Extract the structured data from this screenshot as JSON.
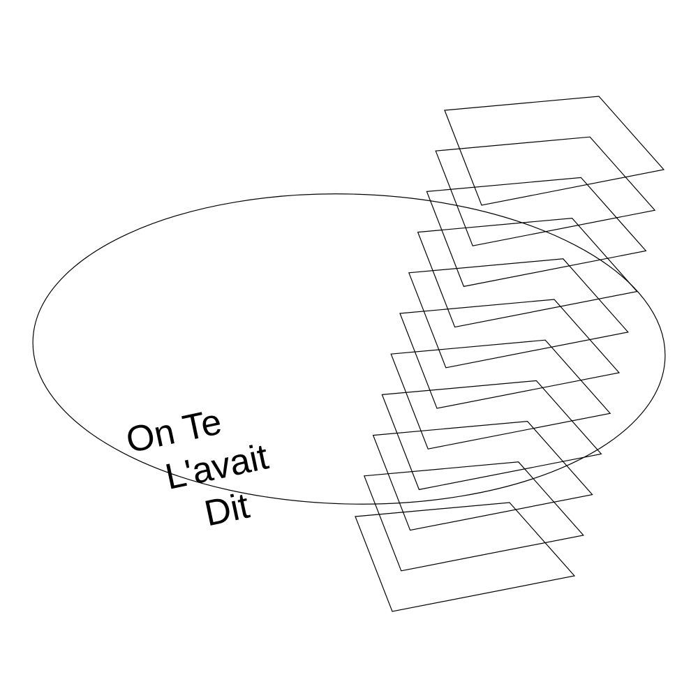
{
  "title_lines": [
    "On Te",
    "L'avait",
    "Dit"
  ],
  "colors": {
    "background": "#ffffff",
    "stroke": "#000000",
    "text": "#000000"
  },
  "shapes": {
    "ellipse": "ellipse-outline",
    "stacked_frames_count": 11
  }
}
